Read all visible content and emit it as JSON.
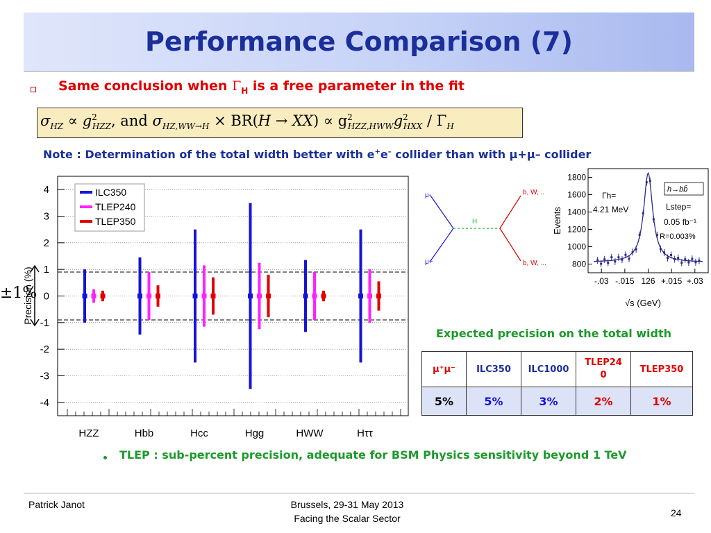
{
  "title": "Performance Comparison (7)",
  "bullet1": {
    "before": "Same conclusion when ",
    "gamma": "Γ",
    "sub": "H",
    "after": " is a free parameter in the fit"
  },
  "formula": {
    "sigma1": "σ",
    "sub1": "HZ",
    "prop1": " ∝ g",
    "sup1": "2",
    "sub1b": "HZZ",
    "and": ",  and  ",
    "sigma2": "σ",
    "sub2": "HZ,WW→H",
    "times": " × BR(",
    "hxx": "H → XX",
    "prop2": ") ∝ g",
    "sup2a": "2",
    "sub2a": "HZZ,HWW",
    "g2": "g",
    "sup2b": "2",
    "sub2b": "HXX",
    "div": " / Γ",
    "sub2c": "H"
  },
  "note": {
    "text1": "Note : Determination of the total width better with e",
    "sup1": "+",
    "text2": "e",
    "sup2": "–",
    "text3": " collider than with μ+μ– collider"
  },
  "pm_label": "±1%",
  "chart_data": {
    "type": "scatter",
    "ylabel": "Precision (%)",
    "ylim": [
      -4.5,
      4.5
    ],
    "yticks": [
      "4",
      "3",
      "2",
      "1",
      "0",
      "-1",
      "-2",
      "-3",
      "-4"
    ],
    "categories": [
      "HZZ",
      "Hbb",
      "Hcc",
      "Hgg",
      "HWW",
      "Hττ"
    ],
    "series": [
      {
        "name": "ILC350",
        "color": "#1414d8",
        "values": [
          0,
          0,
          0,
          0,
          0,
          0
        ],
        "errors": [
          1.0,
          1.45,
          2.5,
          3.5,
          1.35,
          2.5
        ]
      },
      {
        "name": "TLEP240",
        "color": "#ff22ff",
        "values": [
          0,
          0,
          0,
          0,
          0,
          0
        ],
        "errors": [
          0.25,
          0.9,
          1.15,
          1.25,
          0.9,
          1.0
        ]
      },
      {
        "name": "TLEP350",
        "color": "#e00000",
        "values": [
          0,
          0,
          0,
          0,
          0,
          0
        ],
        "errors": [
          0.2,
          0.4,
          0.7,
          0.8,
          0.2,
          0.55
        ]
      }
    ],
    "reference_lines": [
      0.9,
      -0.9
    ],
    "grid": true,
    "legend": "top-left"
  },
  "diagram": {
    "mu_minus": "μ-",
    "mu_plus": "μ+",
    "h": "H",
    "top_right": "b, W, ..",
    "bottom_right": "b, W, ..."
  },
  "inset_chart": {
    "ylabel": "Events",
    "yticks": [
      "1800",
      "1600",
      "1400",
      "1200",
      "1000",
      "800"
    ],
    "xticks": [
      "-.03",
      "-.015",
      "126",
      "+.015",
      "+.03"
    ],
    "xlabel": "√s (GeV)",
    "gamma_label": "Γh=",
    "gamma_value": "4.21 MeV",
    "process": "h→bb̄",
    "lstep_label": "Lstep=",
    "lstep_value": "0.05 fb⁻¹",
    "resolution": "R=0.003%"
  },
  "expected_title": "Expected precision on the total width",
  "width_table": {
    "headers": [
      "μ⁺μ⁻",
      "ILC350",
      "ILC1000",
      "TLEP24 0",
      "TLEP350"
    ],
    "values": [
      "5%",
      "5%",
      "3%",
      "2%",
      "1%"
    ],
    "header_colors": [
      "#e00000",
      "#1a2f9a",
      "#1a2f9a",
      "#e00000",
      "#e00000"
    ],
    "value_colors": [
      "#000000",
      "#1414d8",
      "#1414d8",
      "#e00000",
      "#e00000"
    ]
  },
  "bullet2": "TLEP : sub-percent precision, adequate for BSM Physics sensitivity beyond 1 TeV",
  "footer": {
    "author": "Patrick Janot",
    "venue": "Brussels, 29-31 May 2013",
    "event": "Facing the Scalar Sector",
    "page": "24"
  }
}
